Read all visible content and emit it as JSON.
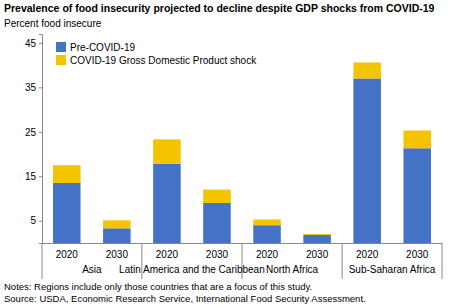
{
  "chart_data": {
    "type": "bar",
    "stacked": true,
    "title": "Prevalence of food insecurity projected to decline despite GDP shocks from COVID-19",
    "y_label": "Percent food insecure",
    "categories": [
      "2020",
      "2030",
      "2020",
      "2030",
      "2020",
      "2030",
      "2020",
      "2030"
    ],
    "category_groups": [
      "Asia",
      "Latin America and the Caribbean",
      "North Africa",
      "Sub-Saharan Africa"
    ],
    "series": [
      {
        "name": "Pre-COVID-19",
        "color": "#4472c4",
        "values": [
          13.5,
          3.3,
          17.8,
          9,
          4,
          1.8,
          37,
          21.3
        ]
      },
      {
        "name": "COVID-19 Gross Domestic Product shock",
        "color": "#f5c400",
        "values": [
          4,
          1.8,
          5.5,
          3,
          1.3,
          0.2,
          3.6,
          4
        ]
      }
    ],
    "ylim": [
      0,
      47
    ],
    "yticks": [
      5,
      15,
      25,
      35,
      45
    ],
    "grid": false,
    "legend": "top-left",
    "annotations": [
      "Notes: Regions include only those countries that are a focus of this study.",
      "Source: USDA, Economic Research Service, International Food Security Assessment."
    ]
  }
}
